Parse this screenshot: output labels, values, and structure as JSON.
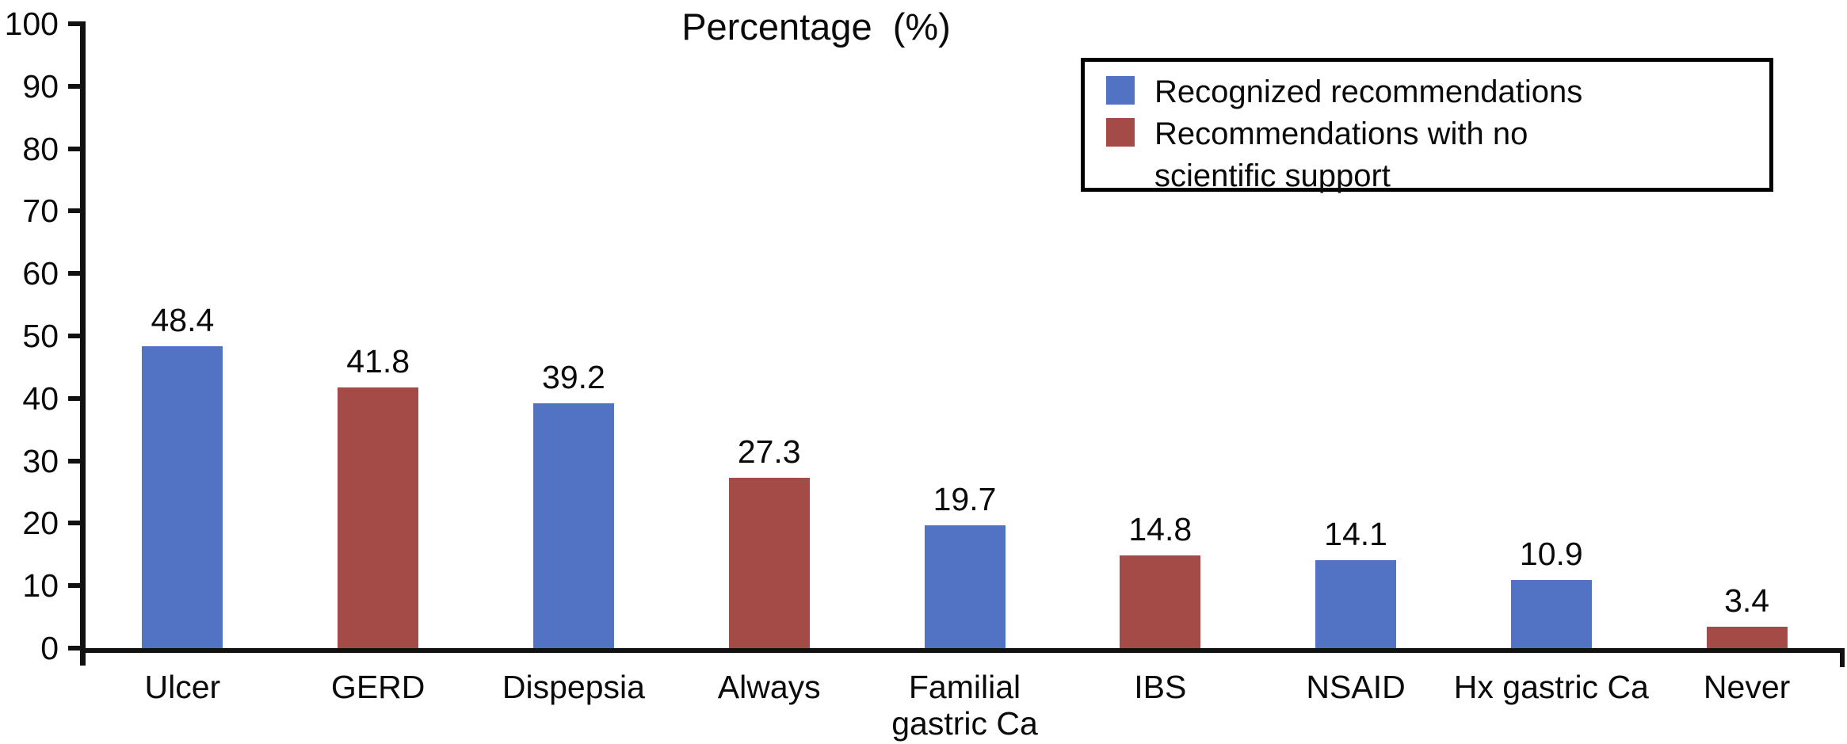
{
  "chart_data": {
    "type": "bar",
    "title": "Percentage  (%)",
    "xlabel": "",
    "ylabel": "",
    "ylim": [
      0,
      100
    ],
    "yticks": [
      0,
      10,
      20,
      30,
      40,
      50,
      60,
      70,
      80,
      90,
      100
    ],
    "grid": false,
    "categories": [
      "Ulcer",
      "GERD",
      "Dispepsia",
      "Always",
      "Familial\ngastric Ca",
      "IBS",
      "NSAID",
      "Hx gastric Ca",
      "Never"
    ],
    "values": [
      48.4,
      41.8,
      39.2,
      27.3,
      19.7,
      14.8,
      14.1,
      10.9,
      3.4
    ],
    "bars": [
      {
        "category": "Ulcer",
        "value": 48.4,
        "label": "48.4",
        "legend_index": 0
      },
      {
        "category": "GERD",
        "value": 41.8,
        "label": "41.8",
        "legend_index": 1
      },
      {
        "category": "Dispepsia",
        "value": 39.2,
        "label": "39.2",
        "legend_index": 0
      },
      {
        "category": "Always",
        "value": 27.3,
        "label": "27.3",
        "legend_index": 1
      },
      {
        "category": "Familial\ngastric Ca",
        "value": 19.7,
        "label": "19.7",
        "legend_index": 0
      },
      {
        "category": "IBS",
        "value": 14.8,
        "label": "14.8",
        "legend_index": 1
      },
      {
        "category": "NSAID",
        "value": 14.1,
        "label": "14.1",
        "legend_index": 0
      },
      {
        "category": "Hx gastric Ca",
        "value": 10.9,
        "label": "10.9",
        "legend_index": 0
      },
      {
        "category": "Never",
        "value": 3.4,
        "label": "3.4",
        "legend_index": 1
      }
    ],
    "legend": {
      "position": "top-right",
      "items": [
        {
          "name": "Recognized recommendations",
          "color": "#5272c4"
        },
        {
          "name": "Recommendations with no\nscientific support",
          "color": "#a44a47"
        }
      ]
    },
    "colors": {
      "axis": "#111111",
      "text": "#0a0a0a",
      "background": "#ffffff"
    }
  }
}
